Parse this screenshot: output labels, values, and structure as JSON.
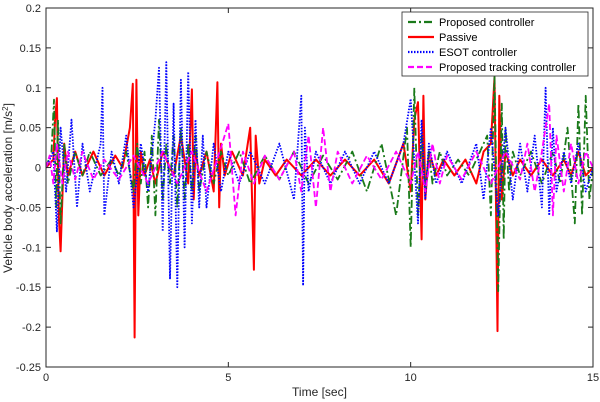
{
  "chart_data": {
    "type": "line",
    "title": "",
    "xlabel": "Time [sec]",
    "ylabel_main": "Vehicle body acceleration [m/s",
    "ylabel_sup": "2",
    "ylabel_end": "]",
    "xlim": [
      0,
      15
    ],
    "ylim": [
      -0.25,
      0.2
    ],
    "xticks": [
      0,
      5,
      10,
      15
    ],
    "xtick_labels": [
      "0",
      "5",
      "10",
      "15"
    ],
    "yticks": [
      -0.25,
      -0.2,
      -0.15,
      -0.1,
      -0.05,
      0,
      0.05,
      0.1,
      0.15,
      0.2
    ],
    "ytick_labels": [
      "-0.25",
      "-0.2",
      "-0.15",
      "-0.1",
      "-0.05",
      "0",
      "0.05",
      "0.1",
      "0.15",
      "0.2"
    ],
    "grid": false,
    "legend_position": "top-right",
    "series": [
      {
        "name": "Passive",
        "color": "#ff0000",
        "dash": "solid",
        "x": [
          0,
          0.2,
          0.25,
          0.3,
          0.35,
          0.4,
          0.5,
          0.6,
          0.8,
          1.0,
          1.3,
          1.6,
          1.9,
          2.1,
          2.3,
          2.38,
          2.43,
          2.48,
          2.53,
          2.6,
          2.7,
          2.85,
          3.0,
          3.2,
          3.5,
          3.7,
          3.9,
          4.0,
          4.05,
          4.1,
          4.2,
          4.4,
          4.6,
          4.7,
          4.75,
          4.8,
          4.9,
          5.1,
          5.4,
          5.6,
          5.7,
          5.75,
          5.85,
          6.0,
          6.3,
          6.6,
          7.0,
          7.4,
          7.8,
          8.2,
          8.6,
          9.0,
          9.4,
          9.8,
          10.0,
          10.1,
          10.2,
          10.3,
          10.35,
          10.4,
          10.5,
          10.7,
          10.9,
          11.2,
          11.5,
          11.8,
          12.0,
          12.2,
          12.3,
          12.38,
          12.43,
          12.5,
          12.6,
          12.8,
          13.0,
          13.3,
          13.6,
          13.9,
          14.2,
          14.4,
          14.6,
          14.8,
          15.0
        ],
        "y": [
          0,
          0.01,
          0.06,
          0.087,
          -0.06,
          -0.105,
          0.03,
          -0.01,
          0.02,
          -0.01,
          0.02,
          -0.01,
          0.015,
          0.0,
          0.05,
          0.105,
          -0.213,
          0.11,
          -0.06,
          0.02,
          -0.01,
          0.01,
          -0.02,
          0.02,
          -0.01,
          0.04,
          -0.02,
          0.098,
          -0.04,
          0.02,
          -0.01,
          0.02,
          -0.03,
          0.107,
          -0.05,
          0.03,
          -0.01,
          0.02,
          -0.01,
          0.05,
          -0.128,
          0.04,
          -0.02,
          0.01,
          -0.01,
          0.01,
          -0.01,
          0.01,
          -0.01,
          0.01,
          -0.01,
          0.01,
          -0.02,
          0.03,
          -0.03,
          0.06,
          0.082,
          -0.09,
          0.09,
          -0.04,
          0.02,
          -0.01,
          0.01,
          -0.01,
          0.01,
          -0.02,
          0.02,
          0.03,
          0.113,
          -0.205,
          0.09,
          -0.04,
          0.02,
          -0.01,
          0.01,
          -0.01,
          0.01,
          -0.01,
          0.01,
          -0.01,
          0.02,
          -0.01,
          0.0
        ]
      },
      {
        "name": "Proposed controller",
        "color": "#1a7a1a",
        "dash": "8,3,2,3",
        "x": [
          0,
          0.15,
          0.22,
          0.28,
          0.33,
          0.4,
          0.5,
          0.6,
          0.8,
          1.0,
          1.2,
          1.5,
          1.8,
          2.0,
          2.2,
          2.4,
          2.5,
          2.6,
          2.7,
          2.8,
          2.9,
          3.0,
          3.1,
          3.2,
          3.3,
          3.4,
          3.5,
          3.6,
          3.7,
          3.8,
          3.9,
          4.0,
          4.1,
          4.2,
          4.4,
          4.6,
          4.8,
          5.0,
          5.3,
          5.6,
          6.0,
          6.4,
          6.8,
          7.2,
          7.6,
          8.0,
          8.4,
          8.8,
          9.2,
          9.6,
          9.9,
          10.0,
          10.1,
          10.2,
          10.3,
          10.4,
          10.5,
          10.6,
          10.8,
          11.0,
          11.3,
          11.6,
          11.9,
          12.1,
          12.2,
          12.3,
          12.4,
          12.5,
          12.55,
          12.6,
          12.7,
          12.8,
          13.0,
          13.3,
          13.6,
          13.9,
          14.1,
          14.3,
          14.5,
          14.6,
          14.7,
          14.8,
          14.9,
          15.0
        ],
        "y": [
          0,
          0.02,
          0.085,
          -0.05,
          0.06,
          -0.07,
          0.03,
          -0.02,
          0.02,
          -0.01,
          0.02,
          -0.01,
          0.01,
          -0.01,
          0.02,
          -0.03,
          0.03,
          -0.02,
          0.02,
          -0.05,
          0.04,
          -0.06,
          0.06,
          -0.04,
          0.03,
          -0.02,
          0.04,
          -0.05,
          0.05,
          -0.04,
          0.03,
          -0.03,
          0.04,
          -0.03,
          0.02,
          -0.02,
          0.02,
          -0.01,
          0.02,
          -0.02,
          0.015,
          -0.015,
          0.02,
          -0.02,
          0.015,
          -0.015,
          0.02,
          -0.03,
          0.03,
          -0.06,
          0.05,
          -0.1,
          0.1,
          -0.06,
          0.04,
          -0.03,
          0.02,
          -0.02,
          0.02,
          -0.01,
          0.01,
          -0.01,
          0.02,
          0.04,
          -0.06,
          0.115,
          -0.155,
          0.08,
          -0.09,
          0.05,
          -0.03,
          0.02,
          -0.01,
          0.02,
          -0.02,
          0.02,
          -0.02,
          0.05,
          -0.07,
          0.08,
          -0.06,
          0.09,
          -0.04,
          0.0
        ]
      },
      {
        "name": "ESOT controller",
        "color": "#0000ff",
        "dash": "1.5,1.5",
        "x": [
          0,
          0.2,
          0.3,
          0.4,
          0.55,
          0.7,
          0.85,
          1.0,
          1.2,
          1.5,
          1.55,
          1.6,
          1.8,
          2.0,
          2.2,
          2.4,
          2.6,
          2.8,
          3.0,
          3.1,
          3.2,
          3.3,
          3.4,
          3.5,
          3.6,
          3.7,
          3.8,
          3.9,
          4.0,
          4.1,
          4.2,
          4.3,
          4.4,
          4.6,
          4.8,
          5.0,
          5.3,
          5.6,
          6.0,
          6.4,
          6.8,
          7.0,
          7.05,
          7.1,
          7.2,
          7.4,
          7.8,
          8.2,
          8.6,
          9.0,
          9.4,
          9.8,
          10.0,
          10.2,
          10.3,
          10.4,
          10.5,
          10.7,
          11.0,
          11.4,
          11.8,
          12.0,
          12.2,
          12.4,
          12.6,
          12.8,
          13.0,
          13.2,
          13.4,
          13.6,
          13.7,
          13.8,
          13.9,
          14.0,
          14.2,
          14.4,
          14.6,
          14.8,
          15.0
        ],
        "y": [
          0,
          0.02,
          -0.08,
          0.05,
          -0.03,
          0.06,
          -0.05,
          0.03,
          -0.03,
          0.03,
          0.1,
          -0.06,
          0.02,
          -0.02,
          0.04,
          -0.05,
          0.03,
          -0.03,
          0.06,
          0.125,
          -0.08,
          0.132,
          -0.14,
          0.08,
          -0.15,
          0.11,
          -0.1,
          0.12,
          -0.07,
          0.06,
          -0.05,
          0.04,
          -0.05,
          0.03,
          -0.03,
          0.02,
          -0.02,
          0.02,
          -0.02,
          0.03,
          -0.04,
          0.09,
          -0.148,
          0.05,
          -0.03,
          0.02,
          -0.02,
          0.02,
          -0.02,
          0.02,
          -0.02,
          0.03,
          0.086,
          -0.07,
          0.06,
          -0.04,
          0.03,
          -0.02,
          0.02,
          -0.02,
          0.03,
          -0.04,
          0.05,
          -0.06,
          0.05,
          -0.04,
          0.03,
          -0.03,
          0.04,
          -0.05,
          0.1,
          -0.06,
          0.05,
          -0.03,
          0.02,
          -0.02,
          0.03,
          -0.03,
          0.0
        ]
      },
      {
        "name": "Proposed tracking controller",
        "color": "#ff00ff",
        "dash": "6,3",
        "x": [
          0,
          0.1,
          0.2,
          0.3,
          0.45,
          0.6,
          0.8,
          1.0,
          1.3,
          1.6,
          2.0,
          2.4,
          2.8,
          3.2,
          3.6,
          4.0,
          4.4,
          4.8,
          5.0,
          5.2,
          5.4,
          5.7,
          6.0,
          6.4,
          6.8,
          7.0,
          7.2,
          7.4,
          7.6,
          7.8,
          8.0,
          8.4,
          8.8,
          9.2,
          9.6,
          10.0,
          10.2,
          10.4,
          10.6,
          10.8,
          11.0,
          11.4,
          11.8,
          12.2,
          12.6,
          13.0,
          13.2,
          13.4,
          13.6,
          13.8,
          13.9,
          14.0,
          14.2,
          14.4,
          14.6,
          14.8,
          15.0
        ],
        "y": [
          0,
          0.015,
          -0.02,
          0.03,
          -0.02,
          0.02,
          -0.015,
          0.02,
          -0.015,
          0.01,
          -0.015,
          0.015,
          -0.02,
          0.02,
          -0.02,
          0.02,
          -0.03,
          0.025,
          0.055,
          -0.06,
          0.02,
          -0.02,
          0.015,
          -0.015,
          0.02,
          -0.03,
          0.04,
          -0.05,
          0.05,
          -0.03,
          0.02,
          -0.02,
          0.015,
          -0.015,
          0.02,
          -0.02,
          0.02,
          -0.03,
          0.03,
          -0.02,
          0.015,
          -0.015,
          0.02,
          -0.02,
          0.02,
          -0.015,
          0.03,
          -0.03,
          0.02,
          0.08,
          -0.06,
          0.04,
          -0.03,
          0.03,
          -0.02,
          0.02,
          0.0
        ]
      }
    ]
  }
}
